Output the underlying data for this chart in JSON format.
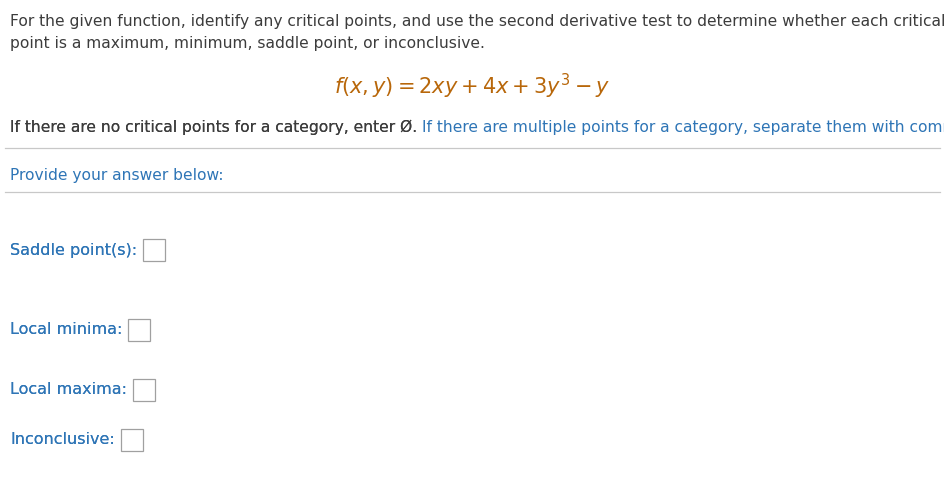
{
  "bg_color": "#ffffff",
  "text_color_dark": "#404040",
  "text_color_blue": "#2e75b6",
  "text_color_orange": "#b8670a",
  "header_line1": "For the given function, identify any critical points, and use the second derivative test to determine whether each critical",
  "header_line2": "point is a maximum, minimum, saddle point, or inconclusive.",
  "info_line": "If there are no critical points for a category, enter Ø. If there are multiple points for a category, separate them with commas.",
  "provide_text": "Provide your answer below:",
  "labels": [
    "Saddle point(s):",
    "Local minima:",
    "Local maxima:",
    "Inconclusive:"
  ],
  "fig_width": 9.45,
  "fig_height": 4.86,
  "dpi": 100,
  "font_size_body": 11.2,
  "font_size_function": 15,
  "font_size_labels": 11.5,
  "header_color": "#3c3c3c",
  "info_color": "#3c3c3c",
  "divider_color": "#c8c8c8",
  "box_edge_color": "#a0a0a0"
}
